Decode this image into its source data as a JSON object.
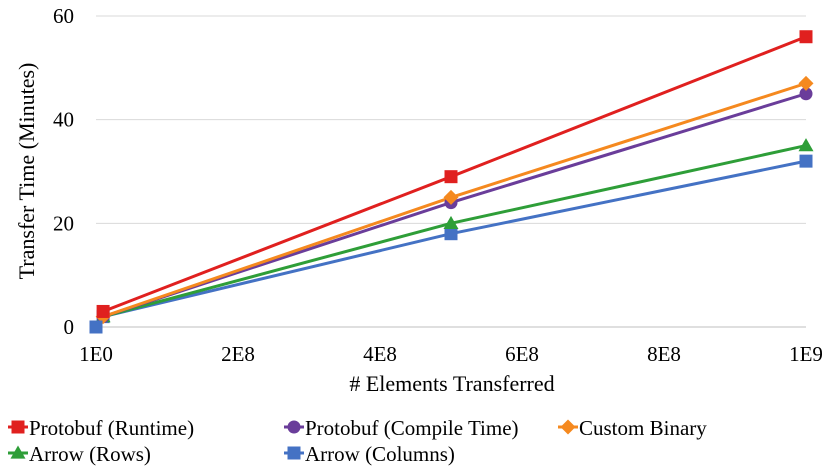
{
  "chart_data": {
    "type": "line",
    "title": "",
    "xlabel": "# Elements Transferred",
    "ylabel": "Transfer Time (Minutes)",
    "x_tick_labels": [
      "1E0",
      "2E8",
      "4E8",
      "6E8",
      "8E8",
      "1E9"
    ],
    "x_ticks": [
      0,
      200000000,
      400000000,
      600000000,
      800000000,
      1000000000
    ],
    "xlim": [
      0,
      1000000000
    ],
    "y_tick_labels": [
      "0",
      "20",
      "40",
      "60"
    ],
    "y_ticks": [
      0,
      20,
      40,
      60
    ],
    "ylim": [
      0,
      60
    ],
    "grid": "horizontal",
    "legend_position": "bottom",
    "x": [
      10000000,
      500000000,
      1000000000
    ],
    "series": [
      {
        "name": "Protobuf (Runtime)",
        "color": "#E0201F",
        "marker": "square",
        "values": [
          3,
          29,
          56
        ]
      },
      {
        "name": "Protobuf (Compile Time)",
        "color": "#6A3D9A",
        "marker": "circle",
        "values": [
          2,
          24,
          45
        ]
      },
      {
        "name": "Custom Binary",
        "color": "#F5891F",
        "marker": "diamond",
        "values": [
          2,
          25,
          47
        ]
      },
      {
        "name": "Arrow (Rows)",
        "color": "#2E9E38",
        "marker": "triangle",
        "values": [
          2,
          20,
          35
        ]
      },
      {
        "name": "Arrow (Columns)",
        "color": "#4472C4",
        "marker": "square",
        "values": [
          2,
          18,
          32
        ]
      }
    ],
    "extra_points": [
      {
        "series": "Arrow (Columns)",
        "x": 0,
        "y": 0
      }
    ]
  }
}
